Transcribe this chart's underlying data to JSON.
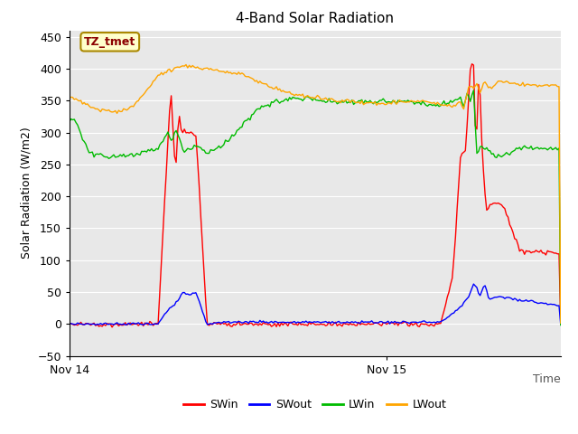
{
  "title": "4-Band Solar Radiation",
  "ylabel": "Solar Radiation (W/m2)",
  "xlabel": "Time",
  "xtick_labels": [
    "Nov 14",
    "Nov 15"
  ],
  "xtick_pos": [
    0.0,
    1.0
  ],
  "ylim": [
    -50,
    460
  ],
  "xlim": [
    0,
    1.55
  ],
  "annotation": "TZ_tmet",
  "bg_color": "#e8e8e8",
  "series_colors": {
    "SWin": "#ff0000",
    "SWout": "#0000ff",
    "LWin": "#00bb00",
    "LWout": "#ffa500"
  },
  "legend_labels": [
    "SWin",
    "SWout",
    "LWin",
    "LWout"
  ]
}
